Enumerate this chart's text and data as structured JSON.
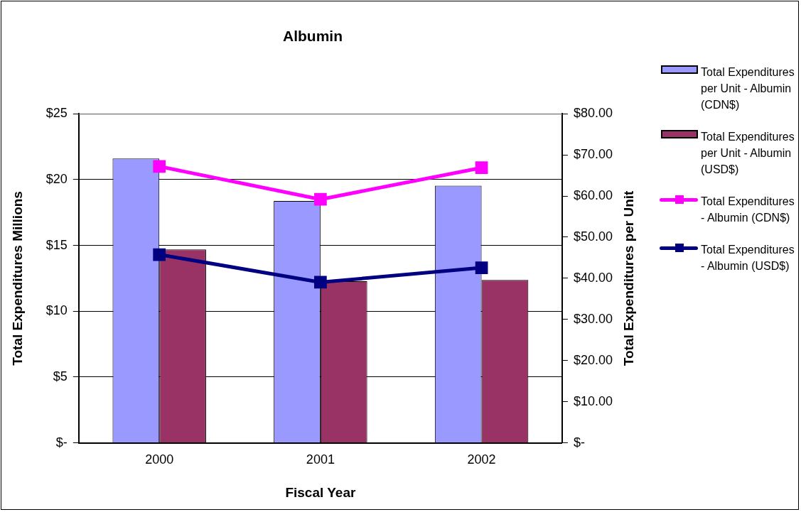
{
  "chart_data": {
    "type": "bar",
    "title": "Albumin",
    "xlabel": "Fiscal Year",
    "ylabel": "Total Expenditures Millions",
    "y2label": "Total Expenditures per Unit",
    "categories": [
      "2000",
      "2001",
      "2002"
    ],
    "series": [
      {
        "name": "Total Expenditures per Unit - Albumin (CDN$)",
        "color": "#9999ff",
        "values": [
          69.1,
          58.8,
          62.5
        ],
        "axis": "y2"
      },
      {
        "name": "Total Expenditures per Unit - Albumin (USD$)",
        "color": "#993366",
        "values": [
          47.0,
          39.3,
          39.6
        ],
        "axis": "y2"
      },
      {
        "name": "Total Expenditures - Albumin (CDN$)",
        "type": "line",
        "color": "#ff00ff",
        "values": [
          21.0,
          18.5,
          20.9
        ],
        "axis": "y"
      },
      {
        "name": "Total Expenditures - Albumin (USD$)",
        "type": "line",
        "color": "#000080",
        "values": [
          14.3,
          12.2,
          13.3
        ],
        "axis": "y"
      }
    ],
    "ylim": [
      0,
      25
    ],
    "yticks": [
      {
        "value": 0,
        "label": "$-"
      },
      {
        "value": 5,
        "label": "$5"
      },
      {
        "value": 10,
        "label": "$10"
      },
      {
        "value": 15,
        "label": "$15"
      },
      {
        "value": 20,
        "label": "$20"
      },
      {
        "value": 25,
        "label": "$25"
      }
    ],
    "y2lim": [
      0,
      80
    ],
    "y2ticks": [
      {
        "value": 0,
        "label": "$-"
      },
      {
        "value": 10,
        "label": "$10.00"
      },
      {
        "value": 20,
        "label": "$20.00"
      },
      {
        "value": 30,
        "label": "$30.00"
      },
      {
        "value": 40,
        "label": "$40.00"
      },
      {
        "value": 50,
        "label": "$50.00"
      },
      {
        "value": 60,
        "label": "$60.00"
      },
      {
        "value": 70,
        "label": "$70.00"
      },
      {
        "value": 80,
        "label": "$80.00"
      }
    ],
    "grid": "y",
    "legend": "right",
    "marker": "square",
    "line_style": "solid"
  }
}
